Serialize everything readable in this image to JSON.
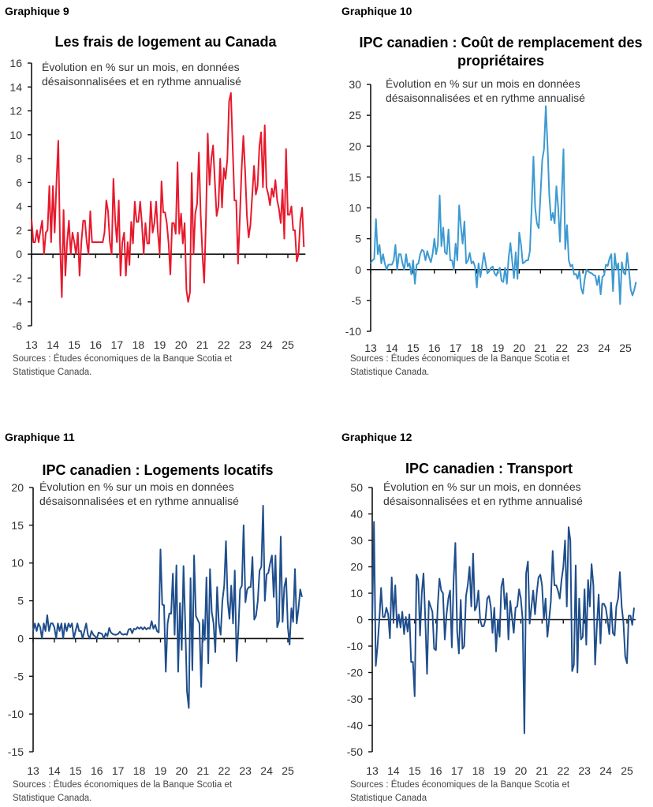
{
  "chart_data": [
    {
      "id": "g9",
      "label": "Graphique 9",
      "type": "line",
      "title": "Les frais de logement au Canada",
      "subtitle": "Évolution en % sur un mois, en données\ndésaisonnalisées et en rythme annualisé",
      "source": "Sources : Études économiques de la Banque Scotia et\nStatistique Canada.",
      "color": "#e8192c",
      "ylim": [
        -6,
        16
      ],
      "yticks": [
        -6,
        -4,
        -2,
        0,
        2,
        4,
        6,
        8,
        10,
        12,
        14,
        16
      ],
      "xtick_labels": [
        "13",
        "14",
        "15",
        "16",
        "17",
        "18",
        "19",
        "20",
        "21",
        "22",
        "23",
        "24",
        "25"
      ],
      "x_start": "2013-01",
      "frequency": "monthly",
      "values": [
        2.9,
        1,
        1,
        2,
        1,
        2,
        2.8,
        0,
        1.8,
        2,
        5.7,
        1,
        5.7,
        1.8,
        6,
        9.5,
        1,
        -3.6,
        3.7,
        -1.8,
        1,
        2.8,
        0,
        1.8,
        1,
        0,
        1.8,
        -1.8,
        1,
        2.8,
        2.8,
        1,
        0,
        3.6,
        1,
        1,
        1,
        1,
        1,
        1,
        1,
        1.8,
        4.5,
        3.6,
        1,
        0,
        6.3,
        2.8,
        1,
        4.5,
        -1.8,
        1,
        1.8,
        -1.8,
        1,
        -0.9,
        2.7,
        0.9,
        4.4,
        2.7,
        2.7,
        4.4,
        2.6,
        0,
        2.6,
        0.9,
        0.9,
        4.4,
        1.8,
        2.6,
        4.4,
        1.8,
        0,
        6.1,
        3.5,
        3.5,
        2.6,
        0.9,
        -1.7,
        2.6,
        2.6,
        1.7,
        7.7,
        1.7,
        3.4,
        0.9,
        2.6,
        -3,
        -4,
        -3.2,
        6.8,
        0,
        3.4,
        4.2,
        8.5,
        3.4,
        0,
        -2.4,
        3,
        10.1,
        5.8,
        8,
        9.1,
        6,
        3.2,
        4,
        8,
        3.9,
        7.2,
        6.3,
        8,
        12.8,
        13.5,
        9,
        4.5,
        4.5,
        -0.8,
        3,
        7,
        9.9,
        7,
        3.2,
        1.4,
        2.5,
        5,
        7.4,
        5,
        5.7,
        9,
        10.2,
        5.6,
        10.8,
        5.6,
        5,
        4.1,
        5.5,
        4.8,
        6.2,
        4.5,
        3.8,
        2.6,
        5.4,
        1.3,
        8.8,
        3.3,
        3.3,
        4,
        2,
        2,
        -0.6,
        0,
        2.8,
        3.9,
        0.6
      ]
    },
    {
      "id": "g10",
      "label": "Graphique 10",
      "type": "line",
      "title": "IPC canadien : Coût de remplacement des propriétaires",
      "subtitle": "Évolution en % sur un mois en données\ndésaisonnalisées et en rythme annualisé",
      "source": "Sources : Études économiques de la Banque Scotia et\nStatistique Canada.",
      "color": "#3d9ad1",
      "ylim": [
        -10,
        30
      ],
      "yticks": [
        -10,
        -5,
        0,
        5,
        10,
        15,
        20,
        25,
        30
      ],
      "xtick_labels": [
        "13",
        "14",
        "15",
        "16",
        "17",
        "18",
        "19",
        "20",
        "21",
        "22",
        "23",
        "24",
        "25"
      ],
      "x_start": "2013-01",
      "frequency": "monthly",
      "values": [
        1,
        1.5,
        1.7,
        8.2,
        2.5,
        4,
        1,
        2.5,
        1,
        0,
        0.8,
        0.8,
        0.8,
        1.5,
        4,
        0,
        2.5,
        2.5,
        1,
        0,
        2.5,
        0.5,
        1,
        -0.8,
        1.5,
        -2.3,
        0.8,
        1,
        2.5,
        3.2,
        3,
        1.5,
        3,
        2,
        1.2,
        2.5,
        5,
        2.5,
        4,
        12,
        3.8,
        6.8,
        2.8,
        2.5,
        6.5,
        1.5,
        1.5,
        0,
        4.2,
        1.5,
        10.4,
        7,
        4.2,
        7.8,
        1,
        1.5,
        2.7,
        1,
        1.3,
        0.5,
        -2.9,
        1,
        -1.2,
        0.5,
        2.7,
        1,
        -0.6,
        -0.3,
        0.3,
        0.5,
        -0.6,
        -1,
        -0.2,
        0.3,
        -1.8,
        -2,
        0.3,
        -2.3,
        2,
        4.3,
        1.5,
        -1.4,
        2.8,
        -1.5,
        6,
        4,
        1,
        1.2,
        1.5,
        1.5,
        3,
        10,
        18.3,
        10,
        7.5,
        6.7,
        12,
        17.8,
        19.5,
        26.5,
        20,
        12,
        8,
        9.2,
        7.5,
        13.5,
        10,
        4.5,
        12,
        19.5,
        3.3,
        7.2,
        1.5,
        0.5,
        0.8,
        -0.8,
        -0.7,
        -1.5,
        -0.2,
        -3,
        -3.9,
        -1.5,
        0,
        -0.3,
        -0.5,
        -0.6,
        -0.9,
        -1,
        -2.5,
        -1,
        -4,
        -1.2,
        -0.9,
        0.8,
        0.6,
        1.8,
        2.5,
        -3.5,
        2.6,
        0,
        1,
        -5.6,
        1.2,
        -0.5,
        -0.8,
        2.7,
        0,
        -3.2,
        -4.2,
        -3.3,
        -2
      ]
    },
    {
      "id": "g11",
      "label": "Graphique 11",
      "type": "line",
      "title": "IPC canadien : Logements locatifs",
      "subtitle": "Évolution en % sur un mois en données\ndésaisonnalisées et en rythme annualisé",
      "source": "Sources : Études économiques de la Banque Scotia et\nStatistique Canada.",
      "color": "#1f4e8c",
      "ylim": [
        -15,
        20
      ],
      "yticks": [
        -15,
        -10,
        -5,
        0,
        5,
        10,
        15,
        20
      ],
      "xtick_labels": [
        "13",
        "14",
        "15",
        "16",
        "17",
        "18",
        "19",
        "20",
        "21",
        "22",
        "23",
        "24",
        "25"
      ],
      "x_start": "2013-01",
      "frequency": "monthly",
      "values": [
        1,
        2,
        1,
        2,
        1.5,
        0,
        2,
        1,
        3.1,
        1,
        2,
        2,
        1.5,
        0,
        2,
        1,
        2,
        0,
        2,
        1,
        2,
        1.5,
        2,
        0,
        1,
        2,
        1,
        1,
        0,
        1,
        2,
        0.5,
        0,
        1,
        0.5,
        0.3,
        0,
        0.8,
        0.7,
        0.6,
        0,
        0.7,
        0.3,
        1.4,
        0.8,
        0.6,
        0.5,
        0.5,
        0.6,
        0.9,
        0.6,
        0.5,
        0.6,
        0.5,
        1.2,
        1.3,
        0.7,
        1.3,
        1.2,
        1.5,
        1.3,
        1.5,
        1.2,
        1.5,
        1.2,
        1.4,
        1.3,
        2.3,
        1.3,
        1.8,
        1,
        0.8,
        11.8,
        4.5,
        4.4,
        -4.4,
        2,
        3.3,
        3.3,
        8.6,
        0.5,
        9.7,
        -4.4,
        4.7,
        -1.5,
        9.6,
        2,
        -7,
        -9.2,
        8,
        -4.2,
        11,
        3,
        2.5,
        2,
        -6.4,
        2.5,
        -0.2,
        8.1,
        -3.3,
        9.2,
        3.5,
        2,
        -1.8,
        6.8,
        2,
        0.5,
        5,
        7,
        12.9,
        5,
        2.6,
        7,
        2,
        9,
        -3,
        1,
        6.5,
        7,
        15,
        4.8,
        6.5,
        6.8,
        6.8,
        10.8,
        2.5,
        3,
        5,
        9,
        9.5,
        17.6,
        5,
        8.5,
        8.7,
        10,
        11,
        5.5,
        11,
        1.5,
        2.3,
        13.5,
        2.2,
        6.8,
        8,
        1.5,
        -0.8,
        4,
        2.2,
        9.2,
        2,
        4,
        6.5,
        5.5
      ]
    },
    {
      "id": "g12",
      "label": "Graphique 12",
      "type": "line",
      "title": "IPC canadien : Transport",
      "subtitle": "Évolution en % sur un mois, en données\ndésaisonnalisées et en rythme annualisé",
      "source": "Sources : Études économiques de la Banque Scotia et\nStatistique Canada",
      "color": "#1f4e8c",
      "ylim": [
        -50,
        50
      ],
      "yticks": [
        -50,
        -40,
        -30,
        -20,
        -10,
        0,
        10,
        20,
        30,
        40,
        50
      ],
      "xtick_labels": [
        "13",
        "14",
        "15",
        "16",
        "17",
        "18",
        "19",
        "20",
        "21",
        "22",
        "23",
        "24",
        "25"
      ],
      "x_start": "2013-01",
      "frequency": "monthly",
      "values": [
        0,
        37,
        -17.5,
        -10,
        0,
        12,
        1,
        1,
        4.5,
        2,
        -7,
        16,
        0,
        13,
        -3,
        2,
        -3,
        3,
        -5.5,
        1,
        -4.5,
        2,
        -16,
        -16,
        -29,
        17,
        15,
        -6,
        10,
        17.5,
        0,
        -20.5,
        7,
        5,
        3,
        -11,
        -11.5,
        5,
        15.5,
        11,
        10,
        -7.5,
        2,
        8,
        11,
        -10.5,
        15,
        29,
        -4.5,
        -12.8,
        7.5,
        -11,
        -10,
        9,
        13,
        20,
        5,
        25,
        3.5,
        5,
        11,
        0,
        -2.5,
        -2.5,
        0,
        8,
        9,
        5,
        -5,
        4.5,
        -12,
        0,
        -6.5,
        12.5,
        15.5,
        4,
        10,
        -7.5,
        7,
        1,
        -5,
        4.5,
        5,
        11.5,
        8,
        0,
        -43,
        17.5,
        22,
        -1.5,
        5,
        11,
        2,
        10,
        16,
        17,
        13,
        0,
        8,
        -6.5,
        0,
        7,
        26,
        13,
        13,
        11,
        8,
        15,
        20,
        30,
        5,
        35,
        30,
        -19.5,
        -17,
        20.5,
        -20,
        8,
        -7.5,
        -6.5,
        11.5,
        -9.5,
        15,
        5,
        21,
        13,
        -17,
        -2,
        9.5,
        -9,
        6,
        6,
        4.5,
        0,
        -5.5,
        6.5,
        -5,
        -6,
        5,
        8,
        18,
        5,
        -1,
        -14,
        -16.5,
        1.5,
        1.5,
        -2,
        4.5
      ]
    }
  ]
}
